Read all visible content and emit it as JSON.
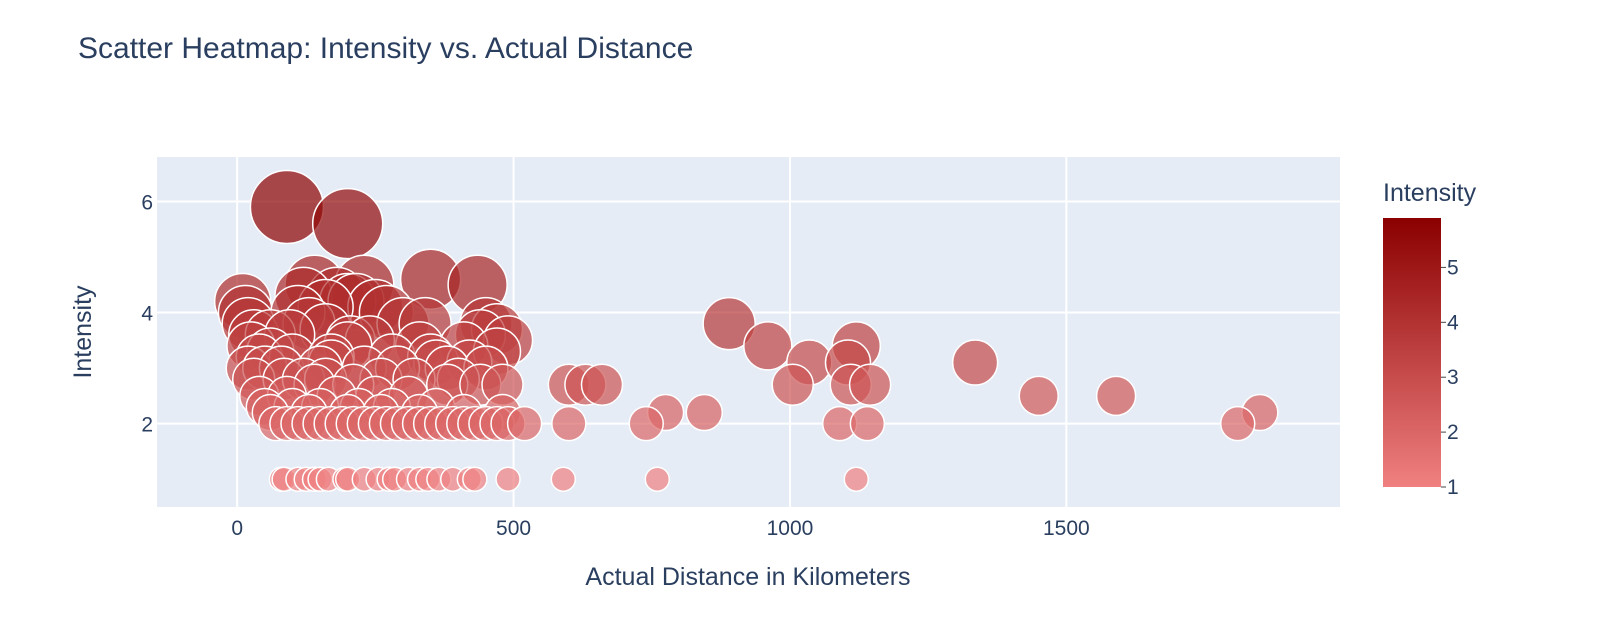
{
  "chart_data": {
    "type": "scatter",
    "title": "Scatter Heatmap: Intensity vs. Actual Distance",
    "xlabel": "Actual Distance in Kilometers",
    "ylabel": "Intensity",
    "xlim": [
      -145,
      1995
    ],
    "ylim": [
      0.5,
      6.8
    ],
    "xticks": [
      0,
      500,
      1000,
      1500
    ],
    "yticks": [
      2,
      4,
      6
    ],
    "grid": true,
    "colorbar": {
      "title": "Intensity",
      "range": [
        1,
        5.9
      ],
      "ticks": [
        1,
        2,
        3,
        4,
        5
      ],
      "colorscale": [
        "#f08080",
        "#8b0000"
      ]
    },
    "size_encodes": "Intensity",
    "points": [
      {
        "x": 90,
        "y": 5.9
      },
      {
        "x": 200,
        "y": 5.6
      },
      {
        "x": 350,
        "y": 4.6
      },
      {
        "x": 435,
        "y": 4.5
      },
      {
        "x": 140,
        "y": 4.5
      },
      {
        "x": 230,
        "y": 4.5
      },
      {
        "x": 10,
        "y": 4.2
      },
      {
        "x": 180,
        "y": 4.3
      },
      {
        "x": 200,
        "y": 4.2
      },
      {
        "x": 215,
        "y": 4.2
      },
      {
        "x": 250,
        "y": 4.1
      },
      {
        "x": 120,
        "y": 4.3
      },
      {
        "x": 15,
        "y": 4.0
      },
      {
        "x": 110,
        "y": 4.0
      },
      {
        "x": 270,
        "y": 4.0
      },
      {
        "x": 160,
        "y": 4.1
      },
      {
        "x": 20,
        "y": 3.8
      },
      {
        "x": 130,
        "y": 3.8
      },
      {
        "x": 300,
        "y": 3.8
      },
      {
        "x": 340,
        "y": 3.8
      },
      {
        "x": 450,
        "y": 3.8
      },
      {
        "x": 890,
        "y": 3.8
      },
      {
        "x": 470,
        "y": 3.7
      },
      {
        "x": 440,
        "y": 3.6
      },
      {
        "x": 30,
        "y": 3.6
      },
      {
        "x": 60,
        "y": 3.6
      },
      {
        "x": 95,
        "y": 3.6
      },
      {
        "x": 160,
        "y": 3.7
      },
      {
        "x": 205,
        "y": 3.5
      },
      {
        "x": 240,
        "y": 3.5
      },
      {
        "x": 490,
        "y": 3.5
      },
      {
        "x": 25,
        "y": 3.4
      },
      {
        "x": 960,
        "y": 3.4
      },
      {
        "x": 1120,
        "y": 3.4
      },
      {
        "x": 200,
        "y": 3.4
      },
      {
        "x": 330,
        "y": 3.4
      },
      {
        "x": 410,
        "y": 3.4
      },
      {
        "x": 40,
        "y": 3.2
      },
      {
        "x": 60,
        "y": 3.3
      },
      {
        "x": 100,
        "y": 3.2
      },
      {
        "x": 170,
        "y": 3.2
      },
      {
        "x": 280,
        "y": 3.2
      },
      {
        "x": 350,
        "y": 3.2
      },
      {
        "x": 470,
        "y": 3.3
      },
      {
        "x": 1035,
        "y": 3.1
      },
      {
        "x": 1105,
        "y": 3.1
      },
      {
        "x": 1335,
        "y": 3.1
      },
      {
        "x": 170,
        "y": 3.1
      },
      {
        "x": 360,
        "y": 3.1
      },
      {
        "x": 420,
        "y": 3.1
      },
      {
        "x": 20,
        "y": 3.0
      },
      {
        "x": 50,
        "y": 3.0
      },
      {
        "x": 80,
        "y": 3.0
      },
      {
        "x": 150,
        "y": 3.0
      },
      {
        "x": 230,
        "y": 3.0
      },
      {
        "x": 290,
        "y": 3.0
      },
      {
        "x": 380,
        "y": 3.0
      },
      {
        "x": 450,
        "y": 3.0
      },
      {
        "x": 30,
        "y": 2.8
      },
      {
        "x": 85,
        "y": 2.8
      },
      {
        "x": 120,
        "y": 2.8
      },
      {
        "x": 160,
        "y": 2.8
      },
      {
        "x": 260,
        "y": 2.8
      },
      {
        "x": 320,
        "y": 2.8
      },
      {
        "x": 400,
        "y": 2.8
      },
      {
        "x": 600,
        "y": 2.7
      },
      {
        "x": 630,
        "y": 2.7
      },
      {
        "x": 660,
        "y": 2.7
      },
      {
        "x": 1005,
        "y": 2.7
      },
      {
        "x": 1110,
        "y": 2.7
      },
      {
        "x": 1145,
        "y": 2.7
      },
      {
        "x": 140,
        "y": 2.7
      },
      {
        "x": 210,
        "y": 2.7
      },
      {
        "x": 380,
        "y": 2.7
      },
      {
        "x": 440,
        "y": 2.7
      },
      {
        "x": 480,
        "y": 2.7
      },
      {
        "x": 40,
        "y": 2.5
      },
      {
        "x": 90,
        "y": 2.5
      },
      {
        "x": 180,
        "y": 2.5
      },
      {
        "x": 250,
        "y": 2.5
      },
      {
        "x": 310,
        "y": 2.5
      },
      {
        "x": 1450,
        "y": 2.5
      },
      {
        "x": 1590,
        "y": 2.5
      },
      {
        "x": 50,
        "y": 2.3
      },
      {
        "x": 100,
        "y": 2.3
      },
      {
        "x": 150,
        "y": 2.3
      },
      {
        "x": 220,
        "y": 2.3
      },
      {
        "x": 280,
        "y": 2.3
      },
      {
        "x": 360,
        "y": 2.3
      },
      {
        "x": 775,
        "y": 2.2
      },
      {
        "x": 845,
        "y": 2.2
      },
      {
        "x": 1850,
        "y": 2.2
      },
      {
        "x": 60,
        "y": 2.2
      },
      {
        "x": 130,
        "y": 2.2
      },
      {
        "x": 200,
        "y": 2.2
      },
      {
        "x": 260,
        "y": 2.2
      },
      {
        "x": 330,
        "y": 2.2
      },
      {
        "x": 410,
        "y": 2.2
      },
      {
        "x": 480,
        "y": 2.2
      },
      {
        "x": 70,
        "y": 2.0
      },
      {
        "x": 90,
        "y": 2.0
      },
      {
        "x": 110,
        "y": 2.0
      },
      {
        "x": 130,
        "y": 2.0
      },
      {
        "x": 150,
        "y": 2.0
      },
      {
        "x": 170,
        "y": 2.0
      },
      {
        "x": 190,
        "y": 2.0
      },
      {
        "x": 210,
        "y": 2.0
      },
      {
        "x": 230,
        "y": 2.0
      },
      {
        "x": 250,
        "y": 2.0
      },
      {
        "x": 270,
        "y": 2.0
      },
      {
        "x": 290,
        "y": 2.0
      },
      {
        "x": 310,
        "y": 2.0
      },
      {
        "x": 330,
        "y": 2.0
      },
      {
        "x": 350,
        "y": 2.0
      },
      {
        "x": 370,
        "y": 2.0
      },
      {
        "x": 390,
        "y": 2.0
      },
      {
        "x": 410,
        "y": 2.0
      },
      {
        "x": 430,
        "y": 2.0
      },
      {
        "x": 450,
        "y": 2.0
      },
      {
        "x": 470,
        "y": 2.0
      },
      {
        "x": 490,
        "y": 2.0
      },
      {
        "x": 520,
        "y": 2.0
      },
      {
        "x": 600,
        "y": 2.0
      },
      {
        "x": 740,
        "y": 2.0
      },
      {
        "x": 1090,
        "y": 2.0
      },
      {
        "x": 1140,
        "y": 2.0
      },
      {
        "x": 1810,
        "y": 2.0
      },
      {
        "x": 80,
        "y": 1.0
      },
      {
        "x": 85,
        "y": 1.0
      },
      {
        "x": 110,
        "y": 1.0
      },
      {
        "x": 125,
        "y": 1.0
      },
      {
        "x": 140,
        "y": 1.0
      },
      {
        "x": 150,
        "y": 1.0
      },
      {
        "x": 165,
        "y": 1.0
      },
      {
        "x": 195,
        "y": 1.0
      },
      {
        "x": 200,
        "y": 1.0
      },
      {
        "x": 230,
        "y": 1.0
      },
      {
        "x": 255,
        "y": 1.0
      },
      {
        "x": 275,
        "y": 1.0
      },
      {
        "x": 285,
        "y": 1.0
      },
      {
        "x": 310,
        "y": 1.0
      },
      {
        "x": 330,
        "y": 1.0
      },
      {
        "x": 345,
        "y": 1.0
      },
      {
        "x": 365,
        "y": 1.0
      },
      {
        "x": 390,
        "y": 1.0
      },
      {
        "x": 420,
        "y": 1.0
      },
      {
        "x": 430,
        "y": 1.0
      },
      {
        "x": 490,
        "y": 1.0
      },
      {
        "x": 590,
        "y": 1.0
      },
      {
        "x": 760,
        "y": 1.0
      },
      {
        "x": 1120,
        "y": 1.0
      }
    ]
  }
}
